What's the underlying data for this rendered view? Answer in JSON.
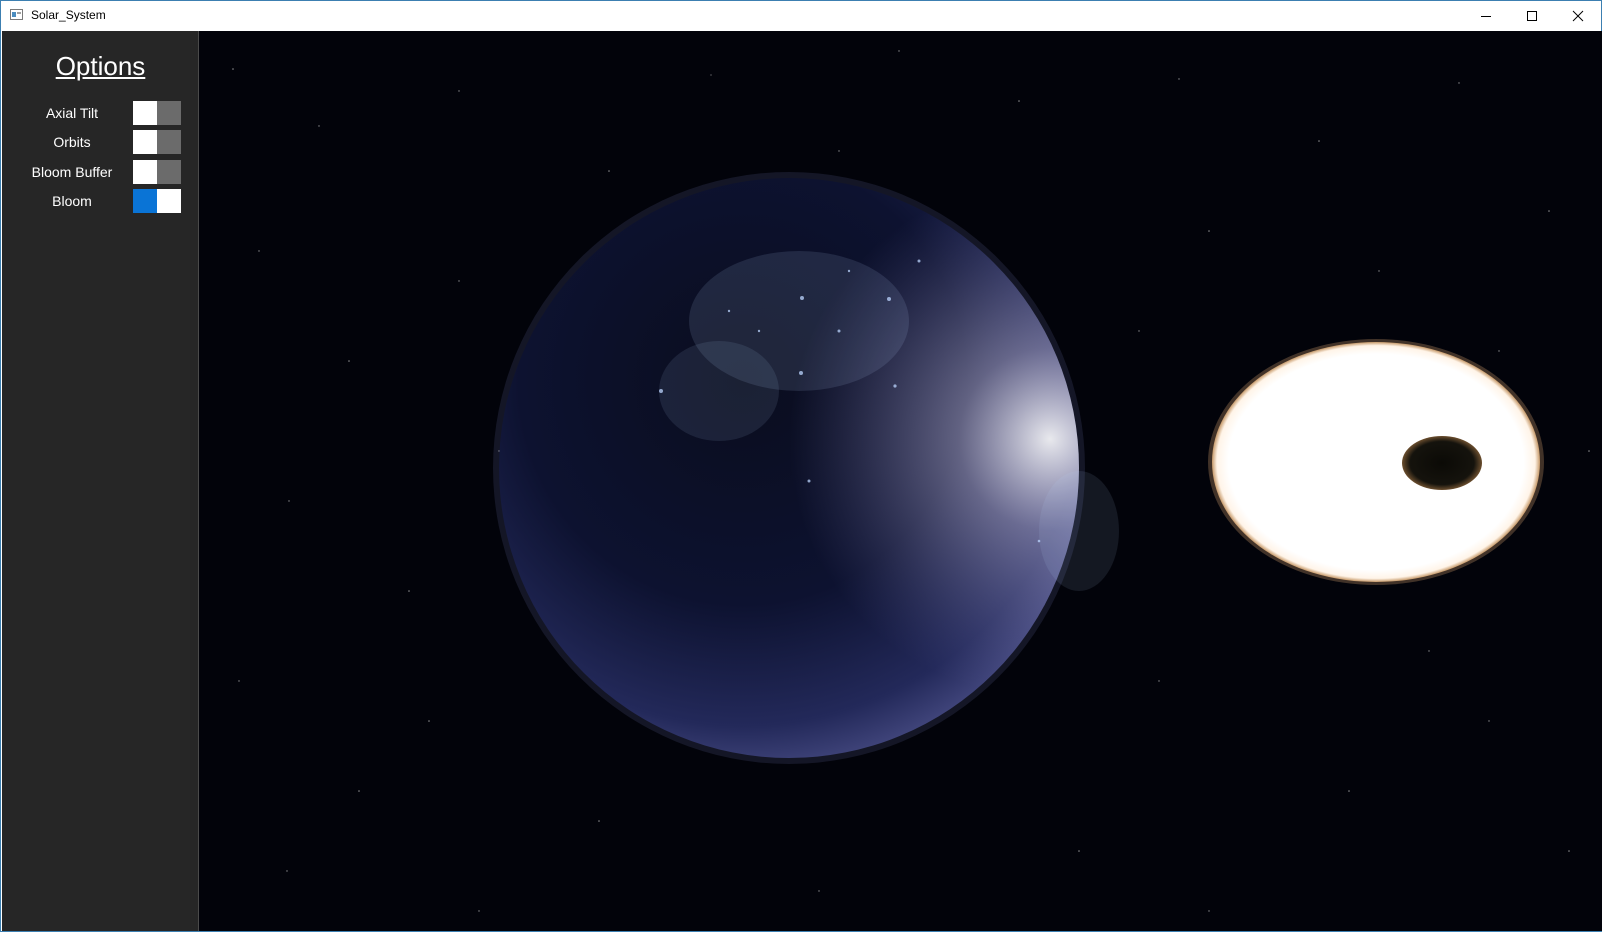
{
  "window": {
    "title": "Solar_System"
  },
  "titlebar_buttons": {
    "minimize": "minimize-icon",
    "maximize": "maximize-icon",
    "close": "close-icon"
  },
  "sidebar": {
    "heading": "Options",
    "options": [
      {
        "label": "Axial Tilt",
        "state": "off"
      },
      {
        "label": "Orbits",
        "state": "off"
      },
      {
        "label": "Bloom Buffer",
        "state": "off"
      },
      {
        "label": "Bloom",
        "state": "on"
      }
    ]
  },
  "colors": {
    "sidebar_bg": "#262626",
    "toggle_on": "#0a74d6",
    "toggle_off": "#6b6b6b",
    "space_bg": "#02030a"
  }
}
